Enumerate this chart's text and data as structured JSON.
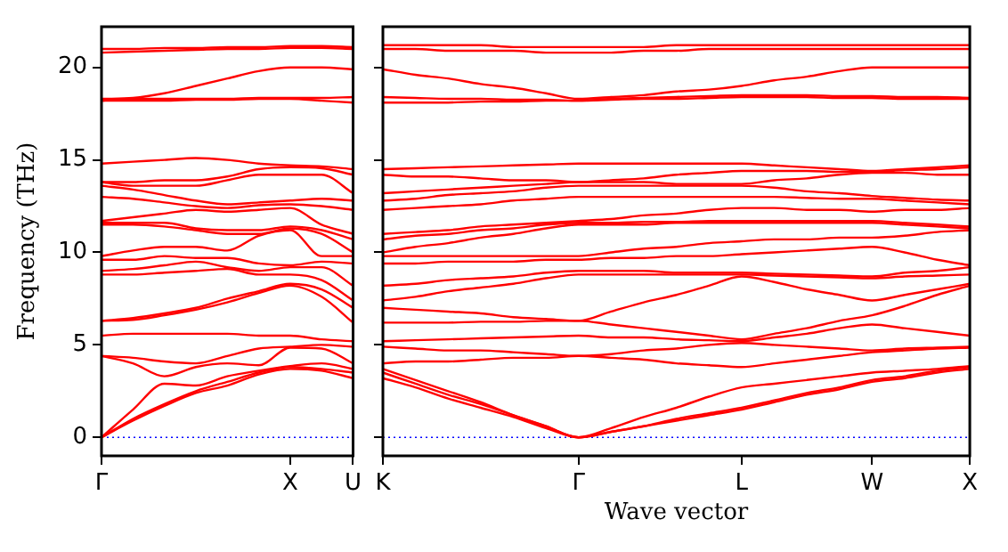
{
  "chart_data": [
    {
      "type": "line",
      "ylabel": "Frequency (THz)",
      "categories": [
        "Γ",
        null,
        null,
        null,
        null,
        null,
        "X",
        null,
        "U"
      ],
      "ylim": [
        -1,
        22.2
      ],
      "yticks": [
        0,
        5,
        10,
        15,
        20
      ],
      "grid": false,
      "legend": false,
      "marker": "none",
      "ref_lines": [
        {
          "axis": "y",
          "value": 0,
          "color": "#0000ff",
          "line_style": "dotted"
        }
      ],
      "series": [
        {
          "color": "#ff0000",
          "values": [
            0,
            0.9,
            1.7,
            2.4,
            2.8,
            3.4,
            3.7,
            3.6,
            3.2
          ]
        },
        {
          "color": "#ff0000",
          "values": [
            0,
            1.0,
            1.8,
            2.5,
            3.0,
            3.5,
            3.8,
            3.7,
            3.5
          ]
        },
        {
          "color": "#ff0000",
          "values": [
            0,
            1.5,
            2.9,
            2.8,
            3.3,
            3.6,
            3.85,
            4.0,
            3.7
          ]
        },
        {
          "color": "#ff0000",
          "values": [
            4.4,
            4.0,
            3.3,
            3.8,
            4.0,
            3.9,
            4.85,
            4.8,
            4.0
          ]
        },
        {
          "color": "#ff0000",
          "values": [
            4.4,
            4.3,
            4.1,
            4.0,
            4.4,
            4.8,
            4.9,
            5.0,
            4.9
          ]
        },
        {
          "color": "#ff0000",
          "values": [
            5.5,
            5.6,
            5.6,
            5.6,
            5.6,
            5.5,
            5.5,
            5.3,
            5.2
          ]
        },
        {
          "color": "#ff0000",
          "values": [
            6.3,
            6.35,
            6.6,
            6.9,
            7.3,
            7.8,
            8.2,
            7.6,
            6.2
          ]
        },
        {
          "color": "#ff0000",
          "values": [
            6.3,
            6.45,
            6.7,
            7.0,
            7.5,
            7.9,
            8.3,
            8.0,
            7.0
          ]
        },
        {
          "color": "#ff0000",
          "values": [
            8.8,
            8.8,
            8.9,
            9.0,
            9.1,
            8.8,
            8.8,
            8.5,
            7.4
          ]
        },
        {
          "color": "#ff0000",
          "values": [
            9.0,
            9.1,
            9.3,
            9.5,
            9.2,
            9.0,
            9.2,
            9.2,
            8.2
          ]
        },
        {
          "color": "#ff0000",
          "values": [
            9.6,
            9.6,
            9.8,
            9.7,
            9.7,
            9.4,
            9.3,
            9.5,
            9.4
          ]
        },
        {
          "color": "#ff0000",
          "values": [
            9.8,
            10.1,
            10.3,
            10.3,
            10.1,
            10.9,
            11.2,
            9.8,
            9.8
          ]
        },
        {
          "color": "#ff0000",
          "values": [
            11.5,
            11.5,
            11.4,
            11.2,
            11.0,
            11.0,
            11.3,
            11.0,
            10.0
          ]
        },
        {
          "color": "#ff0000",
          "values": [
            11.6,
            11.6,
            11.6,
            11.3,
            11.2,
            11.2,
            11.4,
            11.2,
            10.7
          ]
        },
        {
          "color": "#ff0000",
          "values": [
            11.7,
            11.9,
            12.1,
            12.3,
            12.2,
            12.3,
            12.4,
            11.5,
            11.0
          ]
        },
        {
          "color": "#ff0000",
          "values": [
            13.0,
            12.9,
            12.7,
            12.5,
            12.4,
            12.55,
            12.6,
            12.5,
            12.3
          ]
        },
        {
          "color": "#ff0000",
          "values": [
            13.6,
            13.4,
            13.1,
            12.8,
            12.6,
            12.7,
            12.8,
            12.9,
            12.8
          ]
        },
        {
          "color": "#ff0000",
          "values": [
            13.8,
            13.6,
            13.6,
            13.6,
            13.9,
            14.2,
            14.2,
            14.2,
            13.2
          ]
        },
        {
          "color": "#ff0000",
          "values": [
            13.8,
            13.8,
            13.9,
            13.9,
            14.1,
            14.5,
            14.6,
            14.55,
            14.2
          ]
        },
        {
          "color": "#ff0000",
          "values": [
            14.8,
            14.9,
            15.0,
            15.1,
            15.0,
            14.8,
            14.7,
            14.65,
            14.5
          ]
        },
        {
          "color": "#ff0000",
          "values": [
            18.2,
            18.2,
            18.2,
            18.25,
            18.25,
            18.3,
            18.3,
            18.2,
            18.1
          ]
        },
        {
          "color": "#ff0000",
          "values": [
            18.2,
            18.3,
            18.3,
            18.3,
            18.3,
            18.35,
            18.35,
            18.35,
            18.4
          ]
        },
        {
          "color": "#ff0000",
          "values": [
            18.3,
            18.35,
            18.6,
            19.0,
            19.4,
            19.8,
            20.0,
            20.0,
            19.9
          ]
        },
        {
          "color": "#ff0000",
          "values": [
            20.8,
            20.85,
            20.9,
            20.95,
            21.0,
            21.0,
            21.05,
            21.05,
            21.0
          ]
        },
        {
          "color": "#ff0000",
          "values": [
            21.0,
            21.0,
            21.05,
            21.05,
            21.1,
            21.1,
            21.15,
            21.15,
            21.1
          ]
        }
      ]
    },
    {
      "type": "line",
      "xlabel": "Wave vector",
      "categories": [
        "K",
        null,
        null,
        null,
        null,
        null,
        "Γ",
        null,
        null,
        null,
        null,
        "L",
        null,
        null,
        null,
        "W",
        null,
        null,
        "X"
      ],
      "ylim": [
        -1,
        22.2
      ],
      "yticks": [
        0,
        5,
        10,
        15,
        20
      ],
      "tick_labels": "x",
      "grid": false,
      "legend": false,
      "marker": "none",
      "ref_lines": [
        {
          "axis": "y",
          "value": 0,
          "color": "#0000ff",
          "line_style": "dotted"
        }
      ],
      "series": [
        {
          "color": "#ff0000",
          "values": [
            3.2,
            2.7,
            2.1,
            1.6,
            1.1,
            0.5,
            0,
            0.3,
            0.6,
            0.9,
            1.2,
            1.5,
            1.9,
            2.3,
            2.6,
            3.0,
            3.2,
            3.5,
            3.7
          ]
        },
        {
          "color": "#ff0000",
          "values": [
            3.5,
            2.9,
            2.3,
            1.8,
            1.2,
            0.6,
            0,
            0.3,
            0.6,
            1.0,
            1.3,
            1.6,
            2.0,
            2.4,
            2.7,
            3.1,
            3.3,
            3.6,
            3.8
          ]
        },
        {
          "color": "#ff0000",
          "values": [
            3.7,
            3.1,
            2.5,
            1.9,
            1.2,
            0.6,
            0,
            0.5,
            1.1,
            1.6,
            2.2,
            2.7,
            2.9,
            3.1,
            3.3,
            3.5,
            3.6,
            3.7,
            3.85
          ]
        },
        {
          "color": "#ff0000",
          "values": [
            4.0,
            4.1,
            4.1,
            4.2,
            4.3,
            4.3,
            4.4,
            4.3,
            4.2,
            4.0,
            3.9,
            3.8,
            4.0,
            4.2,
            4.4,
            4.6,
            4.7,
            4.8,
            4.85
          ]
        },
        {
          "color": "#ff0000",
          "values": [
            4.9,
            4.8,
            4.7,
            4.7,
            4.6,
            4.5,
            4.4,
            4.5,
            4.7,
            4.8,
            5.0,
            5.1,
            5.0,
            4.9,
            4.8,
            4.7,
            4.8,
            4.85,
            4.9
          ]
        },
        {
          "color": "#ff0000",
          "values": [
            5.2,
            5.25,
            5.3,
            5.35,
            5.4,
            5.45,
            5.5,
            5.4,
            5.4,
            5.3,
            5.25,
            5.2,
            5.4,
            5.6,
            5.9,
            6.1,
            5.9,
            5.7,
            5.5
          ]
        },
        {
          "color": "#ff0000",
          "values": [
            6.2,
            6.2,
            6.2,
            6.25,
            6.25,
            6.3,
            6.3,
            6.1,
            5.9,
            5.7,
            5.5,
            5.3,
            5.6,
            5.9,
            6.3,
            6.6,
            7.1,
            7.7,
            8.2
          ]
        },
        {
          "color": "#ff0000",
          "values": [
            7.0,
            6.9,
            6.8,
            6.7,
            6.5,
            6.4,
            6.3,
            6.8,
            7.3,
            7.7,
            8.2,
            8.7,
            8.4,
            8.0,
            7.7,
            7.4,
            7.7,
            8.0,
            8.3
          ]
        },
        {
          "color": "#ff0000",
          "values": [
            7.4,
            7.6,
            7.9,
            8.1,
            8.3,
            8.6,
            8.8,
            8.8,
            8.8,
            8.8,
            8.8,
            8.8,
            8.75,
            8.7,
            8.65,
            8.6,
            8.7,
            8.75,
            8.8
          ]
        },
        {
          "color": "#ff0000",
          "values": [
            8.2,
            8.3,
            8.5,
            8.6,
            8.7,
            8.9,
            9.0,
            9.0,
            9.0,
            8.9,
            8.9,
            8.9,
            8.85,
            8.8,
            8.75,
            8.7,
            8.9,
            9.0,
            9.2
          ]
        },
        {
          "color": "#ff0000",
          "values": [
            9.4,
            9.4,
            9.5,
            9.5,
            9.5,
            9.6,
            9.6,
            9.7,
            9.7,
            9.8,
            9.8,
            9.9,
            10.0,
            10.1,
            10.2,
            10.3,
            10.0,
            9.6,
            9.3
          ]
        },
        {
          "color": "#ff0000",
          "values": [
            9.8,
            9.8,
            9.8,
            9.8,
            9.8,
            9.8,
            9.8,
            10.0,
            10.2,
            10.3,
            10.5,
            10.6,
            10.7,
            10.7,
            10.8,
            10.8,
            10.9,
            11.1,
            11.2
          ]
        },
        {
          "color": "#ff0000",
          "values": [
            10.0,
            10.3,
            10.5,
            10.8,
            11.0,
            11.3,
            11.5,
            11.5,
            11.5,
            11.6,
            11.6,
            11.6,
            11.6,
            11.6,
            11.6,
            11.6,
            11.5,
            11.4,
            11.3
          ]
        },
        {
          "color": "#ff0000",
          "values": [
            10.7,
            10.9,
            11.0,
            11.2,
            11.3,
            11.5,
            11.6,
            11.6,
            11.65,
            11.65,
            11.7,
            11.7,
            11.7,
            11.7,
            11.7,
            11.7,
            11.6,
            11.5,
            11.4
          ]
        },
        {
          "color": "#ff0000",
          "values": [
            11.0,
            11.1,
            11.2,
            11.4,
            11.5,
            11.6,
            11.7,
            11.8,
            12.0,
            12.1,
            12.3,
            12.4,
            12.4,
            12.3,
            12.3,
            12.2,
            12.3,
            12.3,
            12.4
          ]
        },
        {
          "color": "#ff0000",
          "values": [
            12.3,
            12.4,
            12.5,
            12.6,
            12.8,
            12.9,
            13.0,
            13.0,
            13.0,
            13.0,
            13.0,
            13.0,
            13.0,
            12.95,
            12.9,
            12.9,
            12.8,
            12.7,
            12.6
          ]
        },
        {
          "color": "#ff0000",
          "values": [
            12.8,
            12.9,
            13.1,
            13.2,
            13.3,
            13.5,
            13.6,
            13.6,
            13.6,
            13.6,
            13.6,
            13.6,
            13.5,
            13.3,
            13.2,
            13.05,
            12.95,
            12.85,
            12.8
          ]
        },
        {
          "color": "#ff0000",
          "values": [
            13.2,
            13.3,
            13.4,
            13.5,
            13.6,
            13.7,
            13.8,
            13.8,
            13.8,
            13.7,
            13.7,
            13.7,
            13.9,
            14.0,
            14.2,
            14.3,
            14.3,
            14.2,
            14.2
          ]
        },
        {
          "color": "#ff0000",
          "values": [
            14.2,
            14.1,
            14.1,
            14.0,
            13.9,
            13.9,
            13.8,
            13.9,
            14.0,
            14.2,
            14.3,
            14.4,
            14.4,
            14.4,
            14.35,
            14.35,
            14.45,
            14.5,
            14.6
          ]
        },
        {
          "color": "#ff0000",
          "values": [
            14.5,
            14.55,
            14.6,
            14.65,
            14.7,
            14.75,
            14.8,
            14.8,
            14.8,
            14.8,
            14.8,
            14.8,
            14.7,
            14.6,
            14.5,
            14.4,
            14.5,
            14.6,
            14.7
          ]
        },
        {
          "color": "#ff0000",
          "values": [
            18.1,
            18.1,
            18.1,
            18.15,
            18.15,
            18.2,
            18.2,
            18.25,
            18.3,
            18.3,
            18.35,
            18.4,
            18.4,
            18.4,
            18.35,
            18.35,
            18.3,
            18.3,
            18.3
          ]
        },
        {
          "color": "#ff0000",
          "values": [
            18.4,
            18.35,
            18.3,
            18.3,
            18.25,
            18.25,
            18.2,
            18.3,
            18.35,
            18.4,
            18.45,
            18.5,
            18.5,
            18.5,
            18.45,
            18.45,
            18.4,
            18.4,
            18.35
          ]
        },
        {
          "color": "#ff0000",
          "values": [
            19.9,
            19.6,
            19.4,
            19.1,
            18.9,
            18.6,
            18.3,
            18.4,
            18.5,
            18.7,
            18.8,
            19.0,
            19.3,
            19.5,
            19.8,
            20.0,
            20.0,
            20.0,
            20.0
          ]
        },
        {
          "color": "#ff0000",
          "values": [
            21.0,
            21.0,
            20.9,
            20.9,
            20.9,
            20.8,
            20.8,
            20.8,
            20.9,
            20.9,
            21.0,
            21.0,
            21.0,
            21.0,
            21.0,
            21.0,
            21.0,
            21.0,
            21.0
          ]
        },
        {
          "color": "#ff0000",
          "values": [
            21.2,
            21.2,
            21.2,
            21.2,
            21.1,
            21.1,
            21.1,
            21.1,
            21.1,
            21.2,
            21.2,
            21.2,
            21.2,
            21.2,
            21.2,
            21.2,
            21.2,
            21.2,
            21.2
          ]
        }
      ]
    }
  ]
}
